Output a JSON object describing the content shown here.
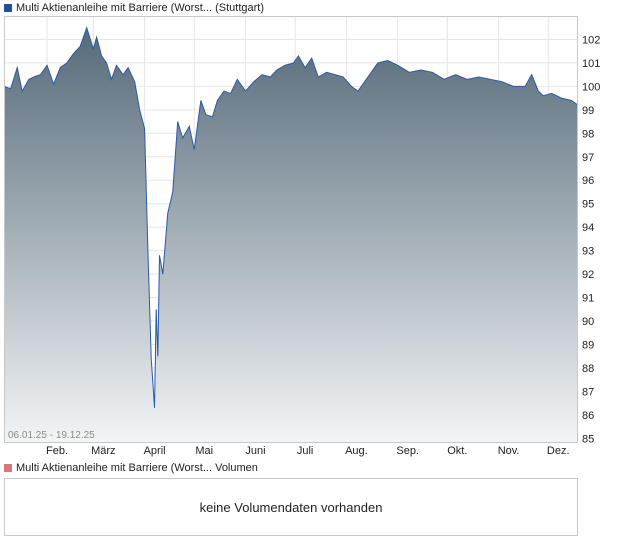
{
  "legend": {
    "price": {
      "label": "Multi Aktienanleihe mit Barriere (Worst... (Stuttgart)",
      "color": "#1f4e9c"
    },
    "volume": {
      "label": "Multi Aktienanleihe mit Barriere (Worst... Volumen",
      "color": "#d9777a"
    }
  },
  "volume_panel": {
    "message": "keine Volumendaten vorhanden"
  },
  "chart_data": {
    "type": "area",
    "date_range_label": "06.01.25 - 19.12.25",
    "x_tick_labels": [
      "Feb.",
      "März",
      "April",
      "Mai",
      "Juni",
      "Juli",
      "Aug.",
      "Sep.",
      "Okt.",
      "Nov.",
      "Dez."
    ],
    "y_tick_labels": [
      "85",
      "86",
      "87",
      "88",
      "89",
      "90",
      "91",
      "92",
      "93",
      "94",
      "95",
      "96",
      "97",
      "98",
      "99",
      "100",
      "101",
      "102"
    ],
    "ylim": [
      84.8,
      103
    ],
    "x_start": "2025-01-06",
    "x_end": "2025-12-19",
    "line_color": "#2b5aa8",
    "fill_top_color": "#566a79",
    "fill_bottom_color": "#f3f5f7",
    "grid": true,
    "series": [
      {
        "x": [
          "2025-01-06",
          "2025-01-10",
          "2025-01-14",
          "2025-01-17",
          "2025-01-21",
          "2025-01-24",
          "2025-01-28",
          "2025-02-01",
          "2025-02-05",
          "2025-02-09",
          "2025-02-13",
          "2025-02-17",
          "2025-02-21",
          "2025-02-25",
          "2025-03-01",
          "2025-03-03",
          "2025-03-06",
          "2025-03-09",
          "2025-03-12",
          "2025-03-15",
          "2025-03-19",
          "2025-03-22",
          "2025-03-26",
          "2025-03-29",
          "2025-04-01",
          "2025-04-03",
          "2025-04-05",
          "2025-04-07",
          "2025-04-08",
          "2025-04-09",
          "2025-04-10",
          "2025-04-12",
          "2025-04-15",
          "2025-04-18",
          "2025-04-21",
          "2025-04-24",
          "2025-04-28",
          "2025-05-01",
          "2025-05-05",
          "2025-05-08",
          "2025-05-12",
          "2025-05-15",
          "2025-05-19",
          "2025-05-23",
          "2025-05-27",
          "2025-06-01",
          "2025-06-06",
          "2025-06-11",
          "2025-06-16",
          "2025-06-20",
          "2025-06-25",
          "2025-06-30",
          "2025-07-03",
          "2025-07-07",
          "2025-07-11",
          "2025-07-15",
          "2025-07-20",
          "2025-07-25",
          "2025-07-30",
          "2025-08-04",
          "2025-08-08",
          "2025-08-14",
          "2025-08-20",
          "2025-08-26",
          "2025-09-01",
          "2025-09-08",
          "2025-09-15",
          "2025-09-22",
          "2025-09-29",
          "2025-10-06",
          "2025-10-13",
          "2025-10-20",
          "2025-10-27",
          "2025-11-03",
          "2025-11-10",
          "2025-11-17",
          "2025-11-21",
          "2025-11-25",
          "2025-11-28",
          "2025-12-03",
          "2025-12-09",
          "2025-12-15",
          "2025-12-19"
        ],
        "y": [
          100.0,
          99.9,
          100.8,
          99.8,
          100.3,
          100.4,
          100.5,
          100.9,
          100.1,
          100.8,
          101.0,
          101.4,
          101.7,
          102.5,
          101.6,
          102.1,
          101.3,
          101.0,
          100.3,
          100.9,
          100.5,
          100.8,
          100.2,
          99.0,
          98.2,
          93.0,
          88.4,
          86.3,
          90.5,
          88.5,
          92.8,
          92.0,
          94.6,
          95.5,
          98.5,
          97.8,
          98.3,
          97.3,
          99.4,
          98.8,
          98.7,
          99.4,
          99.8,
          99.7,
          100.3,
          99.8,
          100.2,
          100.5,
          100.4,
          100.7,
          100.9,
          101.0,
          101.3,
          100.8,
          101.2,
          100.4,
          100.6,
          100.5,
          100.4,
          100.0,
          99.8,
          100.4,
          101.0,
          101.1,
          100.9,
          100.6,
          100.7,
          100.6,
          100.3,
          100.5,
          100.3,
          100.4,
          100.3,
          100.2,
          100.0,
          100.0,
          100.5,
          99.8,
          99.6,
          99.7,
          99.5,
          99.4,
          99.2
        ]
      }
    ]
  }
}
